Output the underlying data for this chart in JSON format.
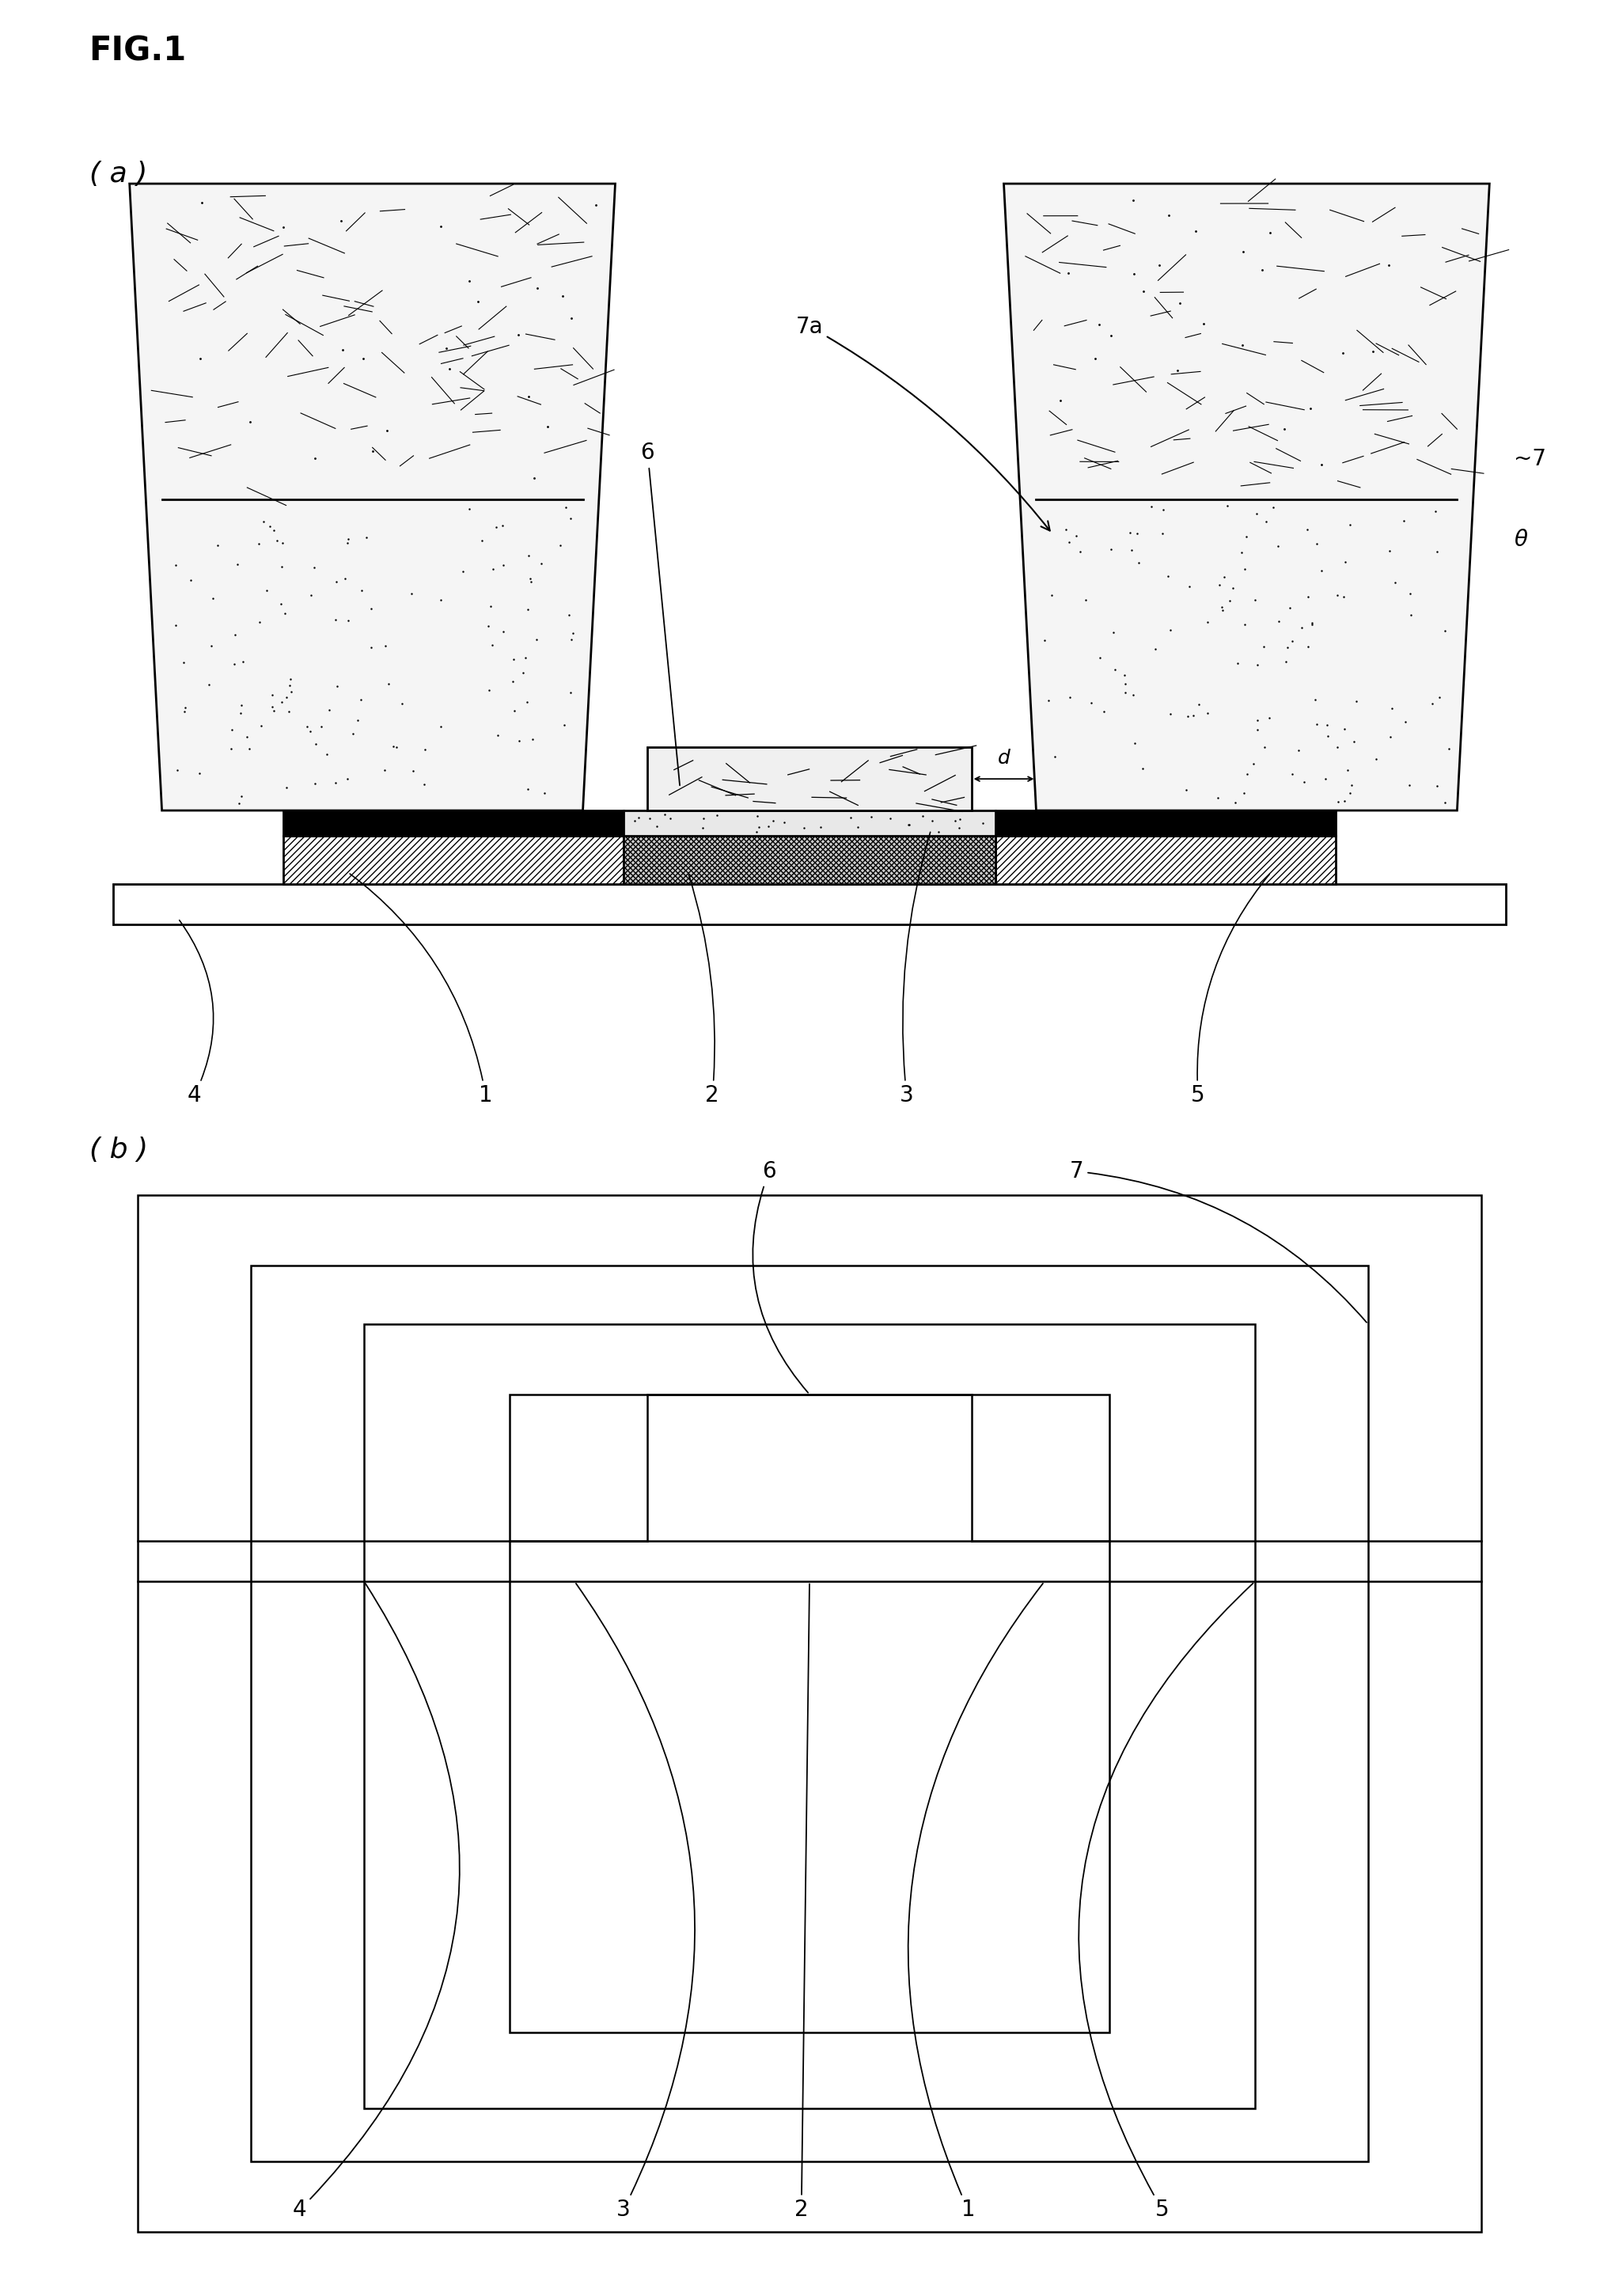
{
  "background_color": "#ffffff",
  "fig_label": "FIG.1",
  "panel_a": "( a )",
  "panel_b": "( b )",
  "lw_main": 2.0,
  "lw_line": 1.5
}
